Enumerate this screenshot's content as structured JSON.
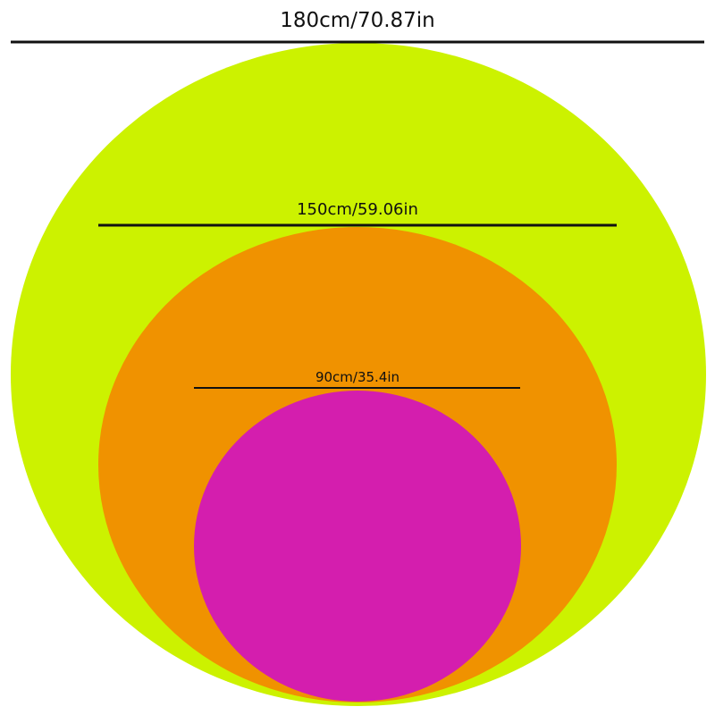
{
  "sizes": [
    {
      "label": "180cm/70.87in",
      "color": "#CCF200"
    },
    {
      "label": "150cm/59.06in",
      "color": "#F09200"
    },
    {
      "label": "90cm/35.4in",
      "color": "#D41EAE"
    }
  ]
}
